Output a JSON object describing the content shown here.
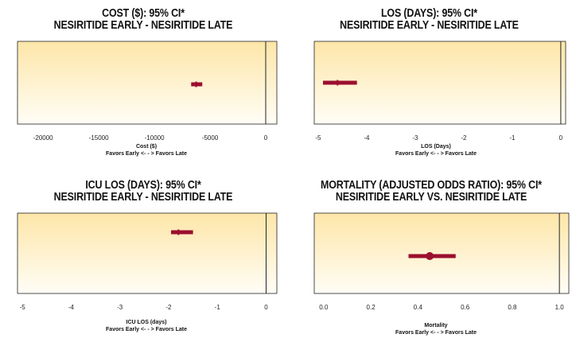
{
  "colors": {
    "panel_top": "#fde6a8",
    "panel_bottom": "#fffdf6",
    "marker": "#9b0f2e",
    "axis": "#222222"
  },
  "chart_data": [
    {
      "type": "scatter",
      "title_line1": "COST ($): 95% CI*",
      "title_line2": "NESIRITIDE EARLY - NESIRITIDE LATE",
      "xlabel": "Cost ($)",
      "xnote": "Favors Early <- - > Favors Late",
      "xlim": [
        -22300,
        1000
      ],
      "ticks": [
        -20000,
        -15000,
        -10000,
        -5000,
        0
      ],
      "tick_labels": [
        "-20000",
        "-15000",
        "-10000",
        "-5000",
        "0"
      ],
      "reference_line": 0,
      "estimate": -6250,
      "ci": [
        -6700,
        -5700
      ],
      "point_marker": false,
      "grid": false
    },
    {
      "type": "scatter",
      "title_line1": "LOS (DAYS): 95% CI*",
      "title_line2": "NESIRITIDE EARLY - NESIRITIDE LATE",
      "xlabel": "LOS (Days)",
      "xnote": "Favors Early <- - > Favors Late",
      "xlim": [
        -5.08,
        0.1
      ],
      "ticks": [
        -5,
        -4,
        -3,
        -2,
        -1,
        0
      ],
      "tick_labels": [
        "-5",
        "-4",
        "-3",
        "-2",
        "-1",
        "0"
      ],
      "reference_line": 0,
      "estimate": -4.6,
      "ci": [
        -4.9,
        -4.2
      ],
      "point_marker": false,
      "grid": false
    },
    {
      "type": "scatter",
      "title_line1": "ICU LOS (DAYS): 95% CI*",
      "title_line2": "NESIRITIDE EARLY - NESIRITIDE LATE",
      "xlabel": "ICU LOS (days)",
      "xnote": "Favors Early <- - > Favors Late",
      "xlim": [
        -5.1,
        0.22
      ],
      "ticks": [
        -5,
        -4,
        -3,
        -2,
        -1,
        0
      ],
      "tick_labels": [
        "-5",
        "-4",
        "-3",
        "-2",
        "-1",
        "0"
      ],
      "reference_line": 0,
      "estimate": -1.8,
      "ci": [
        -1.95,
        -1.5
      ],
      "point_marker": false,
      "grid": false
    },
    {
      "type": "scatter",
      "title_line1": "MORTALITY (ADJUSTED ODDS RATIO): 95% CI*",
      "title_line2": "NESIRITIDE EARLY VS. NESIRITIDE LATE",
      "xlabel": "Mortality",
      "xnote": "Favors Early <- - > Favors Late",
      "xlim": [
        -0.04,
        1.04
      ],
      "ticks": [
        0.0,
        0.2,
        0.4,
        0.6,
        0.8,
        1.0
      ],
      "tick_labels": [
        "0.0",
        "0.2",
        "0.4",
        "0.6",
        "0.8",
        "1.0"
      ],
      "reference_line": 1.0,
      "estimate": 0.45,
      "ci": [
        0.36,
        0.56
      ],
      "point_marker": true,
      "grid": false
    }
  ]
}
